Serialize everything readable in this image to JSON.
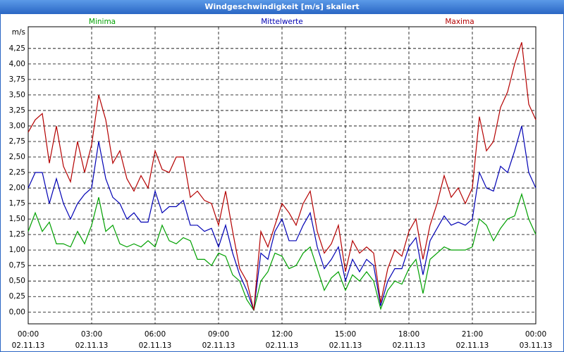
{
  "chart_data": {
    "type": "line",
    "title": "Windgeschwindigkeit [m/s] skaliert",
    "ylabel": "m/s",
    "x": [
      0,
      20,
      40,
      60,
      80,
      100,
      120,
      140,
      160,
      180,
      200,
      220,
      240,
      260,
      280,
      300,
      320,
      340,
      360,
      380,
      400,
      420,
      440,
      460,
      480,
      500,
      520,
      540,
      560,
      580,
      600,
      620,
      640,
      660,
      680,
      700,
      720,
      740,
      760,
      780,
      800,
      820,
      840,
      860,
      880,
      900,
      920,
      940,
      960,
      980,
      1000,
      1020,
      1040,
      1060,
      1080,
      1100,
      1120,
      1140,
      1160,
      1180,
      1200,
      1220,
      1240,
      1260,
      1280,
      1300,
      1320,
      1340,
      1360,
      1380,
      1400,
      1420,
      1440
    ],
    "series": [
      {
        "name": "Minima",
        "color": "#00a000",
        "values": [
          1.3,
          1.6,
          1.3,
          1.45,
          1.1,
          1.1,
          1.05,
          1.3,
          1.1,
          1.4,
          1.85,
          1.3,
          1.4,
          1.1,
          1.05,
          1.1,
          1.05,
          1.15,
          1.05,
          1.4,
          1.15,
          1.1,
          1.2,
          1.15,
          0.85,
          0.85,
          0.75,
          0.95,
          0.9,
          0.6,
          0.5,
          0.2,
          0.03,
          0.5,
          0.65,
          0.95,
          0.9,
          0.7,
          0.75,
          0.95,
          1.05,
          0.7,
          0.35,
          0.55,
          0.65,
          0.35,
          0.6,
          0.5,
          0.65,
          0.5,
          0.05,
          0.35,
          0.5,
          0.45,
          0.7,
          0.85,
          0.3,
          0.85,
          0.95,
          1.05,
          1.0,
          1.0,
          1.0,
          1.05,
          1.5,
          1.4,
          1.15,
          1.35,
          1.5,
          1.55,
          1.9,
          1.5,
          1.25
        ]
      },
      {
        "name": "Mittelwerte",
        "color": "#0000b4",
        "values": [
          2.0,
          2.25,
          2.25,
          1.75,
          2.15,
          1.75,
          1.5,
          1.75,
          1.9,
          2.0,
          2.75,
          2.15,
          1.85,
          1.75,
          1.5,
          1.6,
          1.45,
          1.45,
          1.95,
          1.6,
          1.7,
          1.7,
          1.8,
          1.4,
          1.4,
          1.3,
          1.35,
          1.05,
          1.4,
          0.95,
          0.6,
          0.35,
          0.03,
          0.95,
          0.85,
          1.3,
          1.5,
          1.15,
          1.15,
          1.4,
          1.6,
          1.05,
          0.7,
          0.85,
          1.05,
          0.5,
          0.85,
          0.65,
          0.85,
          0.75,
          0.1,
          0.5,
          0.7,
          0.7,
          1.05,
          1.2,
          0.6,
          1.15,
          1.35,
          1.55,
          1.4,
          1.45,
          1.4,
          1.5,
          2.25,
          2.0,
          1.95,
          2.35,
          2.25,
          2.6,
          3.0,
          2.25,
          2.0
        ]
      },
      {
        "name": "Maxima",
        "color": "#b40000",
        "values": [
          2.9,
          3.1,
          3.2,
          2.4,
          3.0,
          2.35,
          2.1,
          2.75,
          2.25,
          2.7,
          3.5,
          3.1,
          2.4,
          2.6,
          2.15,
          1.95,
          2.2,
          2.0,
          2.6,
          2.3,
          2.25,
          2.5,
          2.5,
          1.85,
          1.95,
          1.8,
          1.75,
          1.4,
          1.95,
          1.3,
          0.7,
          0.5,
          0.03,
          1.3,
          1.05,
          1.4,
          1.75,
          1.6,
          1.4,
          1.75,
          1.95,
          1.3,
          0.95,
          1.1,
          1.4,
          0.65,
          1.15,
          0.95,
          1.05,
          0.95,
          0.15,
          0.7,
          1.0,
          0.9,
          1.3,
          1.5,
          0.85,
          1.4,
          1.75,
          2.2,
          1.85,
          2.0,
          1.75,
          2.0,
          3.15,
          2.6,
          2.75,
          3.3,
          3.55,
          4.0,
          4.35,
          3.35,
          3.1
        ]
      }
    ],
    "xlim": [
      0,
      1440
    ],
    "xticks": [
      {
        "value": 0,
        "label": "00:00",
        "date": "02.11.13"
      },
      {
        "value": 180,
        "label": "03:00",
        "date": "02.11.13"
      },
      {
        "value": 360,
        "label": "06:00",
        "date": "02.11.13"
      },
      {
        "value": 540,
        "label": "09:00",
        "date": "02.11.13"
      },
      {
        "value": 720,
        "label": "12:00",
        "date": "02.11.13"
      },
      {
        "value": 900,
        "label": "15:00",
        "date": "02.11.13"
      },
      {
        "value": 1080,
        "label": "18:00",
        "date": "02.11.13"
      },
      {
        "value": 1260,
        "label": "21:00",
        "date": "02.11.13"
      },
      {
        "value": 1440,
        "label": "00:00",
        "date": "03.11.13"
      }
    ],
    "ylim": [
      -0.19,
      4.6
    ],
    "yticks": [
      {
        "value": 0,
        "label": "0,00"
      },
      {
        "value": 0.25,
        "label": "0,25"
      },
      {
        "value": 0.5,
        "label": "0,50"
      },
      {
        "value": 0.75,
        "label": "0,75"
      },
      {
        "value": 1,
        "label": "1,00"
      },
      {
        "value": 1.25,
        "label": "1,25"
      },
      {
        "value": 1.5,
        "label": "1,50"
      },
      {
        "value": 1.75,
        "label": "1,75"
      },
      {
        "value": 2,
        "label": "2,00"
      },
      {
        "value": 2.25,
        "label": "2,25"
      },
      {
        "value": 2.5,
        "label": "2,50"
      },
      {
        "value": 2.75,
        "label": "2,75"
      },
      {
        "value": 3,
        "label": "3,00"
      },
      {
        "value": 3.25,
        "label": "3,25"
      },
      {
        "value": 3.5,
        "label": "3,50"
      },
      {
        "value": 3.75,
        "label": "3,75"
      },
      {
        "value": 4,
        "label": "4,00"
      },
      {
        "value": 4.25,
        "label": "4,25"
      }
    ],
    "grid": true
  }
}
